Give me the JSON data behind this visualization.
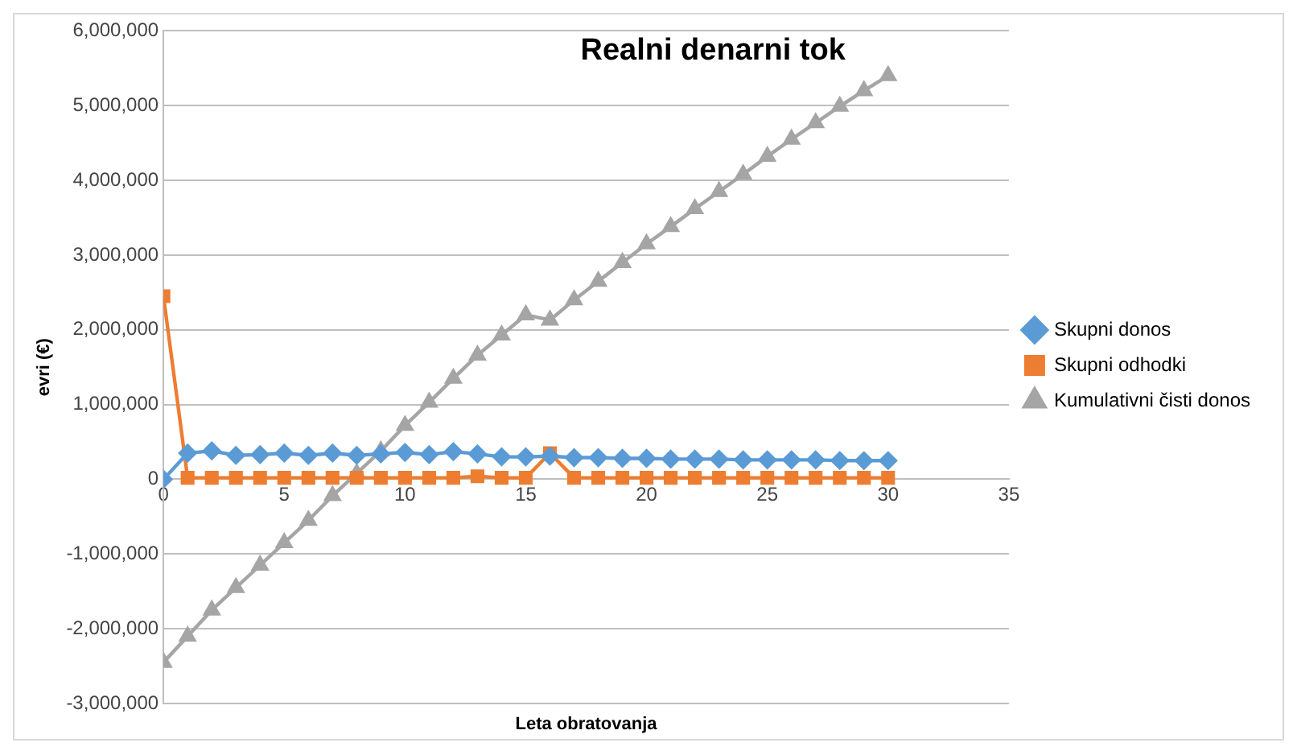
{
  "chart_data": {
    "type": "line",
    "title": "Realni denarni tok",
    "xlabel": "Leta obratovanja",
    "ylabel": "evri (€)",
    "x": [
      0,
      1,
      2,
      3,
      4,
      5,
      6,
      7,
      8,
      9,
      10,
      11,
      12,
      13,
      14,
      15,
      16,
      17,
      18,
      19,
      20,
      21,
      22,
      23,
      24,
      25,
      26,
      27,
      28,
      29,
      30
    ],
    "series": [
      {
        "name": "Skupni donos",
        "color": "#5b9bd5",
        "marker": "diamond",
        "values": [
          0,
          350000,
          380000,
          320000,
          330000,
          350000,
          320000,
          350000,
          320000,
          340000,
          360000,
          330000,
          370000,
          340000,
          300000,
          300000,
          310000,
          290000,
          290000,
          280000,
          280000,
          270000,
          270000,
          270000,
          260000,
          260000,
          260000,
          260000,
          250000,
          250000,
          250000
        ]
      },
      {
        "name": "Skupni odhodki",
        "color": "#ed7d31",
        "marker": "square",
        "values": [
          2450000,
          20000,
          20000,
          20000,
          20000,
          20000,
          20000,
          20000,
          20000,
          20000,
          20000,
          20000,
          20000,
          40000,
          20000,
          20000,
          350000,
          20000,
          20000,
          20000,
          20000,
          20000,
          20000,
          20000,
          20000,
          20000,
          20000,
          20000,
          20000,
          20000,
          20000
        ]
      },
      {
        "name": "Kumulativni čisti donos",
        "color": "#a5a5a5",
        "marker": "triangle",
        "values": [
          -2450000,
          -2100000,
          -1750000,
          -1450000,
          -1150000,
          -850000,
          -550000,
          -220000,
          80000,
          380000,
          720000,
          1030000,
          1350000,
          1660000,
          1930000,
          2200000,
          2130000,
          2400000,
          2650000,
          2900000,
          3150000,
          3380000,
          3620000,
          3850000,
          4080000,
          4320000,
          4550000,
          4770000,
          4990000,
          5200000,
          5400000
        ]
      }
    ],
    "xlim": [
      0,
      35
    ],
    "xticks": [
      0,
      5,
      10,
      15,
      20,
      25,
      30,
      35
    ],
    "ylim": [
      -3000000,
      6000000
    ],
    "yticks": [
      {
        "value": -3000000,
        "label": "-3,000,000"
      },
      {
        "value": -2000000,
        "label": "-2,000,000"
      },
      {
        "value": -1000000,
        "label": "-1,000,000"
      },
      {
        "value": 0,
        "label": "0"
      },
      {
        "value": 1000000,
        "label": "1,000,000"
      },
      {
        "value": 2000000,
        "label": "2,000,000"
      },
      {
        "value": 3000000,
        "label": "3,000,000"
      },
      {
        "value": 4000000,
        "label": "4,000,000"
      },
      {
        "value": 5000000,
        "label": "5,000,000"
      },
      {
        "value": 6000000,
        "label": "6,000,000"
      }
    ],
    "grid": "y",
    "legend": "right",
    "line_style": "solid"
  }
}
